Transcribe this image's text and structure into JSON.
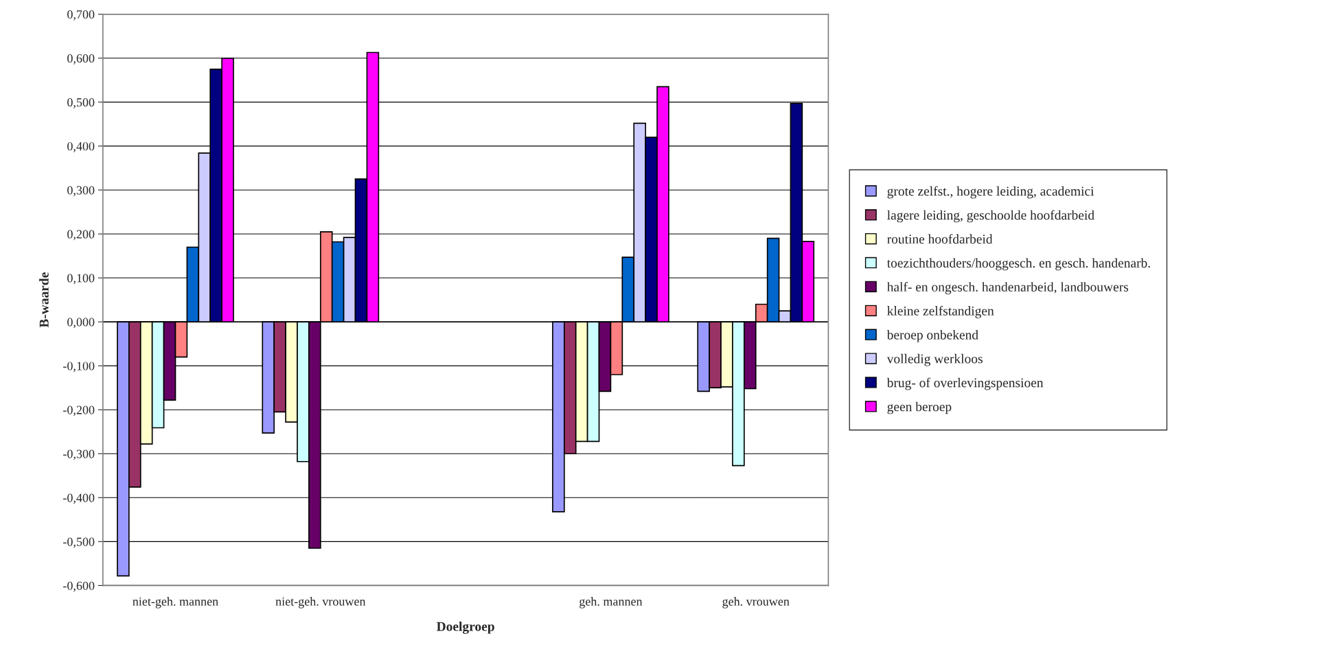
{
  "chart_data": {
    "type": "bar",
    "xlabel": "Doelgroep",
    "ylabel": "B-waarde",
    "categories": [
      "niet-geh. mannen",
      "niet-geh. vrouwen",
      null,
      "geh. mannen",
      "geh. vrouwen"
    ],
    "series": [
      {
        "name": "grote zelfst., hogere leiding, academici",
        "color": "#9999ff",
        "values": [
          -0.578,
          -0.253,
          null,
          -0.432,
          -0.158
        ]
      },
      {
        "name": "lagere leiding, geschoolde hoofdarbeid",
        "color": "#993366",
        "values": [
          -0.376,
          -0.205,
          null,
          -0.3,
          -0.15
        ]
      },
      {
        "name": "routine hoofdarbeid",
        "color": "#ffffcc",
        "values": [
          -0.278,
          -0.228,
          null,
          -0.272,
          -0.148
        ]
      },
      {
        "name": "toezichthouders/hooggesch. en gesch. handenarb.",
        "color": "#ccffff",
        "values": [
          -0.241,
          -0.318,
          null,
          -0.272,
          -0.327
        ]
      },
      {
        "name": "half- en ongesch. handenarbeid, landbouwers",
        "color": "#660066",
        "values": [
          -0.178,
          -0.515,
          null,
          -0.158,
          -0.152
        ]
      },
      {
        "name": "kleine zelfstandigen",
        "color": "#ff8080",
        "values": [
          -0.08,
          0.205,
          null,
          -0.12,
          0.04
        ]
      },
      {
        "name": "beroep onbekend",
        "color": "#0066cc",
        "values": [
          0.17,
          0.182,
          null,
          0.147,
          0.19
        ]
      },
      {
        "name": "volledig werkloos",
        "color": "#ccccff",
        "values": [
          0.384,
          0.192,
          null,
          0.452,
          0.025
        ]
      },
      {
        "name": "brug- of overlevingspensioen",
        "color": "#000080",
        "values": [
          0.575,
          0.325,
          null,
          0.42,
          0.497
        ]
      },
      {
        "name": "geen beroep",
        "color": "#ff00ff",
        "values": [
          0.6,
          0.613,
          null,
          0.535,
          0.183
        ]
      }
    ],
    "ylim": [
      -0.6,
      0.7
    ],
    "yticks": [
      {
        "value": -0.6,
        "label": "-0,600"
      },
      {
        "value": -0.5,
        "label": "-0,500"
      },
      {
        "value": -0.4,
        "label": "-0,400"
      },
      {
        "value": -0.3,
        "label": "-0,300"
      },
      {
        "value": -0.2,
        "label": "-0,200"
      },
      {
        "value": -0.1,
        "label": "-0,100"
      },
      {
        "value": 0,
        "label": "0,000"
      },
      {
        "value": 0.1,
        "label": "0,100"
      },
      {
        "value": 0.2,
        "label": "0,200"
      },
      {
        "value": 0.3,
        "label": "0,300"
      },
      {
        "value": 0.4,
        "label": "0,400"
      },
      {
        "value": 0.5,
        "label": "0,500"
      },
      {
        "value": 0.6,
        "label": "0,600"
      },
      {
        "value": 0.7,
        "label": "0,700"
      }
    ],
    "grid": "y",
    "legend": "right"
  }
}
